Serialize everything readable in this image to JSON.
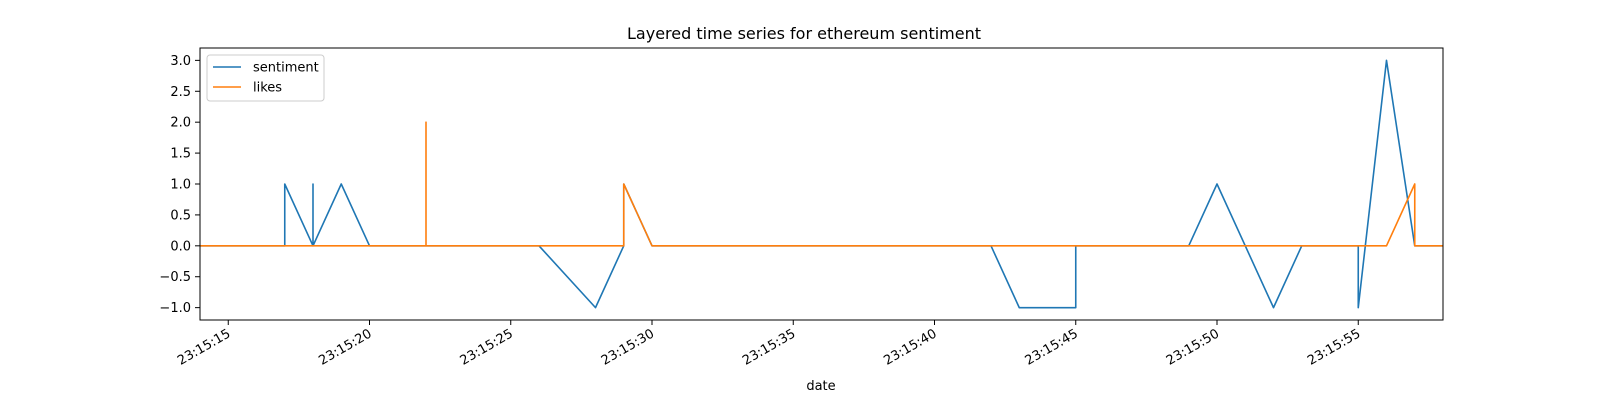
{
  "chart_data": {
    "type": "line",
    "title": "Layered time series for ethereum sentiment",
    "xlabel": "date",
    "ylabel": "",
    "x_unit": "time (HH:MM:SS)",
    "xlim": [
      "23:15:14",
      "23:15:58"
    ],
    "ylim": [
      -1.2,
      3.2
    ],
    "x_ticks": [
      "23:15:15",
      "23:15:20",
      "23:15:25",
      "23:15:30",
      "23:15:35",
      "23:15:40",
      "23:15:45",
      "23:15:50",
      "23:15:55"
    ],
    "y_ticks": [
      "3.0",
      "2.5",
      "2.0",
      "1.5",
      "1.0",
      "0.5",
      "0.0",
      "−0.5",
      "−1.0"
    ],
    "y_tick_values": [
      3.0,
      2.5,
      2.0,
      1.5,
      1.0,
      0.5,
      0.0,
      -0.5,
      -1.0
    ],
    "grid": false,
    "legend_position": "top-left",
    "series": [
      {
        "name": "sentiment",
        "color": "#1f77b4",
        "x": [
          "23:15:14",
          "23:15:17",
          "23:15:17",
          "23:15:18",
          "23:15:18",
          "23:15:18",
          "23:15:19",
          "23:15:20",
          "23:15:22",
          "23:15:26",
          "23:15:28",
          "23:15:29",
          "23:15:29",
          "23:15:30",
          "23:15:42",
          "23:15:43",
          "23:15:45",
          "23:15:45",
          "23:15:49",
          "23:15:50",
          "23:15:52",
          "23:15:53",
          "23:15:55",
          "23:15:55",
          "23:15:56",
          "23:15:57",
          "23:15:58"
        ],
        "y": [
          0,
          0,
          1,
          0,
          1,
          0,
          1,
          0,
          0,
          0,
          -1,
          0,
          1,
          0,
          0,
          -1,
          -1,
          0,
          0,
          1,
          -1,
          0,
          0,
          -1,
          3,
          0,
          0
        ]
      },
      {
        "name": "likes",
        "color": "#ff7f0e",
        "x": [
          "23:15:14",
          "23:15:22",
          "23:15:22",
          "23:15:22",
          "23:15:29",
          "23:15:29",
          "23:15:30",
          "23:15:56",
          "23:15:57",
          "23:15:57",
          "23:15:58"
        ],
        "y": [
          0,
          0,
          2,
          0,
          0,
          1,
          0,
          0,
          1,
          0,
          0
        ]
      }
    ]
  }
}
